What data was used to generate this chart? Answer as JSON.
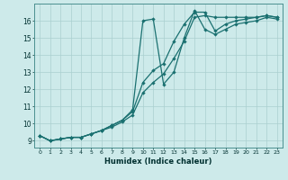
{
  "xlabel": "Humidex (Indice chaleur)",
  "bg_color": "#cdeaea",
  "grid_color": "#aacfcf",
  "line_color": "#1a7070",
  "spine_color": "#4a9090",
  "xlim": [
    -0.5,
    23.5
  ],
  "ylim": [
    8.6,
    17.0
  ],
  "yticks": [
    9,
    10,
    11,
    12,
    13,
    14,
    15,
    16
  ],
  "xticks": [
    0,
    1,
    2,
    3,
    4,
    5,
    6,
    7,
    8,
    9,
    10,
    11,
    12,
    13,
    14,
    15,
    16,
    17,
    18,
    19,
    20,
    21,
    22,
    23
  ],
  "line1_x": [
    0,
    1,
    2,
    3,
    4,
    5,
    6,
    7,
    8,
    9,
    10,
    11,
    12,
    13,
    14,
    15,
    16,
    17,
    18,
    19,
    20,
    21,
    22,
    23
  ],
  "line1_y": [
    9.3,
    9.0,
    9.1,
    9.2,
    9.2,
    9.4,
    9.6,
    9.8,
    10.1,
    10.5,
    11.8,
    12.4,
    12.9,
    13.8,
    14.8,
    16.2,
    16.3,
    16.2,
    16.2,
    16.2,
    16.2,
    16.2,
    16.3,
    16.2
  ],
  "line2_x": [
    0,
    1,
    2,
    3,
    4,
    5,
    6,
    7,
    8,
    9,
    10,
    11,
    12,
    13,
    14,
    15,
    16,
    17,
    18,
    19,
    20,
    21,
    22,
    23
  ],
  "line2_y": [
    9.3,
    9.0,
    9.1,
    9.2,
    9.2,
    9.4,
    9.6,
    9.9,
    10.2,
    10.7,
    12.4,
    13.1,
    13.5,
    14.8,
    15.8,
    16.5,
    16.5,
    15.4,
    15.8,
    16.0,
    16.1,
    16.2,
    16.3,
    16.2
  ],
  "line3_x": [
    0,
    1,
    2,
    3,
    4,
    5,
    6,
    7,
    8,
    9,
    10,
    11,
    12,
    13,
    14,
    15,
    16,
    17,
    18,
    19,
    20,
    21,
    22,
    23
  ],
  "line3_y": [
    9.3,
    9.0,
    9.1,
    9.2,
    9.2,
    9.4,
    9.6,
    9.9,
    10.2,
    10.8,
    16.0,
    16.1,
    12.3,
    13.0,
    15.0,
    16.6,
    15.5,
    15.2,
    15.5,
    15.8,
    15.9,
    16.0,
    16.2,
    16.1
  ]
}
